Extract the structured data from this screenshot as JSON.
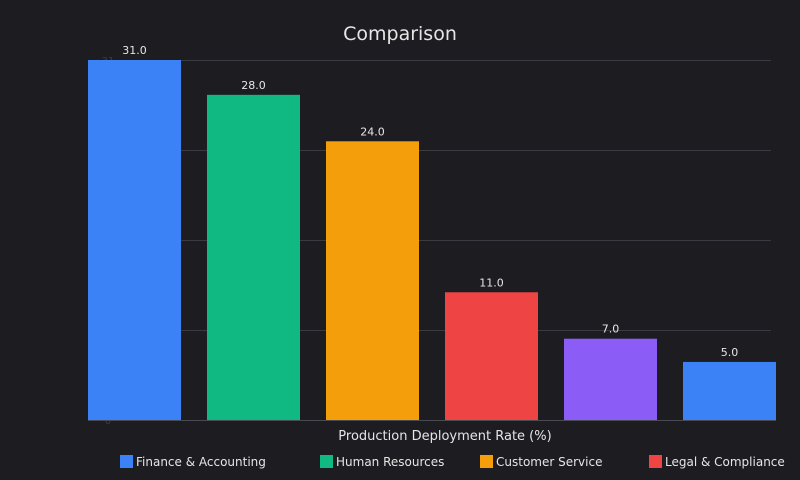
{
  "chart_data": {
    "type": "bar",
    "title": "Comparison",
    "xlabel": "Production Deployment Rate (%)",
    "ylabel": "",
    "ylim": [
      0,
      31
    ],
    "y_ticks": [
      {
        "value": 0,
        "label": "0"
      },
      {
        "value": 31,
        "label": "31"
      }
    ],
    "gridlines": [
      7.75,
      15.5,
      23.25,
      31
    ],
    "grid": true,
    "legend_position": "bottom",
    "categories": [
      "Finance & Accounting",
      "Human Resources",
      "Customer Service",
      "Legal & Compliance",
      "",
      ""
    ],
    "values": [
      31.0,
      28.0,
      24.0,
      11.0,
      7.0,
      5.0
    ],
    "value_labels": [
      "31.0",
      "28.0",
      "24.0",
      "11.0",
      "7.0",
      "5.0"
    ],
    "colors": [
      "#3b82f6",
      "#10b981",
      "#f59e0b",
      "#ef4444",
      "#8b5cf6",
      "#3b82f6"
    ],
    "legend": [
      {
        "label": "Finance & Accounting",
        "color": "#3b82f6"
      },
      {
        "label": "Human Resources",
        "color": "#10b981"
      },
      {
        "label": "Customer Service",
        "color": "#f59e0b"
      },
      {
        "label": "Legal & Compliance",
        "color": "#ef4444"
      }
    ]
  }
}
